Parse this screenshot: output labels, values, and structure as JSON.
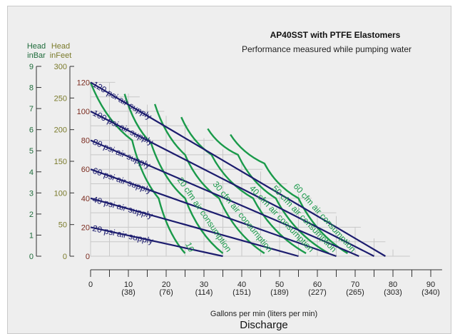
{
  "chart_data": {
    "type": "line",
    "title": "AP40SST with PTFE Elastomers",
    "subtitle": "Performance measured while pumping water",
    "y_axes": {
      "bar": {
        "label_line1": "Head",
        "label_line2": "inBar",
        "ticks": [
          "0",
          "1",
          "2",
          "3",
          "4",
          "5",
          "6",
          "7",
          "8",
          "9"
        ]
      },
      "feet": {
        "label_line1": "Head",
        "label_line2": "inFeet",
        "ticks": [
          "0",
          "50",
          "100",
          "150",
          "200",
          "250",
          "300"
        ]
      },
      "psi": {
        "ticks": [
          "0",
          "20",
          "40",
          "60",
          "80",
          "100",
          "120"
        ]
      }
    },
    "x_axis": {
      "ticks": [
        {
          "value": 0,
          "gpm": "0",
          "lpm": ""
        },
        {
          "value": 10,
          "gpm": "10",
          "lpm": "(38)"
        },
        {
          "value": 20,
          "gpm": "20",
          "lpm": "(76)"
        },
        {
          "value": 30,
          "gpm": "30",
          "lpm": "(114)"
        },
        {
          "value": 40,
          "gpm": "40",
          "lpm": "(151)"
        },
        {
          "value": 50,
          "gpm": "50",
          "lpm": "(189)"
        },
        {
          "value": 60,
          "gpm": "60",
          "lpm": "(227)"
        },
        {
          "value": 70,
          "gpm": "70",
          "lpm": "(265)"
        },
        {
          "value": 80,
          "gpm": "80",
          "lpm": "(303)"
        },
        {
          "value": 90,
          "gpm": "90",
          "lpm": "(340)"
        }
      ],
      "label": "Gallons per min (liters per min)",
      "title": "Discharge"
    },
    "xlim": [
      0,
      95
    ],
    "ylim_psi": [
      0,
      130
    ],
    "air_supply_series": [
      {
        "name": "20 psi air supply",
        "points": [
          [
            0,
            20
          ],
          [
            35,
            0
          ]
        ]
      },
      {
        "name": "40 psi air supply",
        "points": [
          [
            0,
            40
          ],
          [
            55,
            0
          ]
        ]
      },
      {
        "name": "60 psi air supply",
        "points": [
          [
            0,
            60
          ],
          [
            65,
            0
          ]
        ]
      },
      {
        "name": "80 psi air supply",
        "points": [
          [
            0,
            80
          ],
          [
            71,
            0
          ]
        ]
      },
      {
        "name": "100 psi air supply",
        "points": [
          [
            0,
            100
          ],
          [
            75,
            0
          ]
        ]
      },
      {
        "name": "120 psi air supply",
        "points": [
          [
            0,
            120
          ],
          [
            78,
            0
          ]
        ]
      }
    ],
    "air_consumption_series": [
      {
        "name": "10",
        "points": [
          [
            0,
            120
          ],
          [
            11,
            80
          ],
          [
            18,
            40
          ],
          [
            25,
            2
          ]
        ]
      },
      {
        "name": "20 cfm air consumption",
        "points": [
          [
            9,
            112
          ],
          [
            16,
            78
          ],
          [
            25,
            40
          ],
          [
            35,
            2
          ]
        ]
      },
      {
        "name": "30 cfm air consumption",
        "points": [
          [
            17,
            105
          ],
          [
            25,
            70
          ],
          [
            34,
            40
          ],
          [
            46,
            2
          ]
        ]
      },
      {
        "name": "40 cfm air consumption",
        "points": [
          [
            24,
            96
          ],
          [
            32,
            70
          ],
          [
            43,
            40
          ],
          [
            57,
            2
          ]
        ]
      },
      {
        "name": "50 cfm air consumption",
        "points": [
          [
            31,
            88
          ],
          [
            39,
            70
          ],
          [
            49,
            40
          ],
          [
            63,
            2
          ]
        ]
      },
      {
        "name": "60 cfm air consumption",
        "points": [
          [
            37,
            84
          ],
          [
            46,
            64
          ],
          [
            55,
            40
          ],
          [
            68,
            2
          ]
        ]
      }
    ],
    "colors": {
      "air_supply": "#1c1c6e",
      "air_consumption": "#1a9a4a",
      "bar_axis": "#1e6b3a",
      "feet_axis": "#7a7a2a",
      "psi_axis": "#7a2a1e",
      "grid": "#c8c8c8"
    },
    "grid": true
  }
}
